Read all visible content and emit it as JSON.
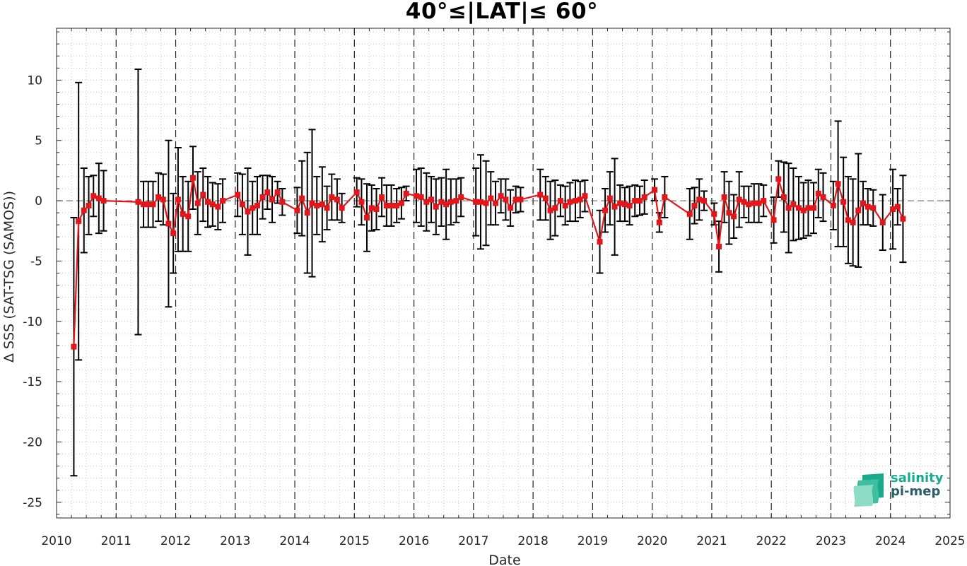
{
  "chart_data": {
    "type": "line",
    "title": "40°≤|LAT|≤ 60°",
    "xlabel": "Date",
    "ylabel": "Δ SSS (SAT-TSG (SAMOS))",
    "xlim": [
      2010,
      2025
    ],
    "ylim": [
      -26.3,
      14.3
    ],
    "xticks": [
      "2010",
      "2011",
      "2012",
      "2013",
      "2014",
      "2015",
      "2016",
      "2017",
      "2018",
      "2019",
      "2020",
      "2021",
      "2022",
      "2023",
      "2024",
      "2025"
    ],
    "yticks": [
      10,
      5,
      0,
      -5,
      -10,
      -15,
      -20,
      -25
    ],
    "grid": "minor dotted",
    "reference_line": 0,
    "year_separators": [
      2011,
      2012,
      2013,
      2014,
      2015,
      2016,
      2017,
      2018,
      2019,
      2020,
      2021,
      2022,
      2023,
      2024
    ],
    "colors": {
      "series": "#e3161b",
      "errorbar": "#000000",
      "axis": "#262626"
    },
    "series": [
      {
        "x": [
          2010.29,
          2010.37,
          2010.46,
          2010.54,
          2010.62,
          2010.71,
          2010.79,
          2011.37,
          2011.46,
          2011.54,
          2011.62,
          2011.71,
          2011.79,
          2011.88,
          2011.96,
          2012.04,
          2012.12,
          2012.21,
          2012.29,
          2012.37,
          2012.46,
          2012.54,
          2012.62,
          2012.71,
          2012.79,
          2013.04,
          2013.12,
          2013.21,
          2013.29,
          2013.37,
          2013.46,
          2013.54,
          2013.62,
          2013.71,
          2013.79,
          2014.04,
          2014.12,
          2014.21,
          2014.29,
          2014.37,
          2014.46,
          2014.54,
          2014.62,
          2014.71,
          2014.79,
          2015.04,
          2015.12,
          2015.21,
          2015.29,
          2015.37,
          2015.46,
          2015.54,
          2015.62,
          2015.71,
          2015.79,
          2015.87,
          2016.04,
          2016.12,
          2016.21,
          2016.29,
          2016.37,
          2016.46,
          2016.54,
          2016.62,
          2016.71,
          2016.79,
          2017.04,
          2017.12,
          2017.21,
          2017.29,
          2017.37,
          2017.46,
          2017.54,
          2017.62,
          2017.71,
          2017.79,
          2018.12,
          2018.21,
          2018.29,
          2018.37,
          2018.46,
          2018.54,
          2018.62,
          2018.71,
          2018.79,
          2018.87,
          2019.12,
          2019.21,
          2019.29,
          2019.37,
          2019.46,
          2019.54,
          2019.62,
          2019.71,
          2019.79,
          2019.87,
          2020.04,
          2020.12,
          2020.21,
          2020.63,
          2020.71,
          2020.79,
          2020.87,
          2021.04,
          2021.12,
          2021.21,
          2021.29,
          2021.37,
          2021.46,
          2021.54,
          2021.62,
          2021.71,
          2021.79,
          2021.87,
          2022.04,
          2022.12,
          2022.21,
          2022.29,
          2022.37,
          2022.46,
          2022.54,
          2022.62,
          2022.71,
          2022.79,
          2022.87,
          2023.04,
          2023.12,
          2023.21,
          2023.29,
          2023.37,
          2023.46,
          2023.54,
          2023.62,
          2023.71,
          2023.87,
          2024.04,
          2024.12,
          2024.21
        ],
        "y": [
          -12.1,
          -1.7,
          -0.8,
          -0.4,
          0.4,
          0.2,
          0.0,
          -0.1,
          -0.3,
          -0.3,
          -0.3,
          0.3,
          0.1,
          -1.9,
          -2.7,
          0.1,
          -1.1,
          -1.3,
          1.9,
          -0.2,
          0.5,
          -0.1,
          -0.3,
          -0.5,
          0.0,
          0.5,
          -0.3,
          -0.9,
          -0.6,
          -0.4,
          0.3,
          0.7,
          0.1,
          0.7,
          -0.1,
          -0.8,
          0.2,
          -1.0,
          -0.2,
          -0.4,
          -0.3,
          -0.6,
          0.3,
          0.1,
          -0.6,
          0.7,
          -0.1,
          -1.4,
          -0.6,
          -0.7,
          0.3,
          -0.4,
          -0.4,
          -0.4,
          -0.2,
          0.6,
          0.4,
          0.3,
          -0.1,
          0.1,
          -0.5,
          -0.1,
          -0.3,
          -0.1,
          0.0,
          0.3,
          -0.1,
          -0.1,
          -0.2,
          0.2,
          -0.2,
          0.4,
          0.1,
          -0.6,
          0.1,
          0.1,
          0.5,
          0.2,
          -0.8,
          -0.6,
          0.0,
          -0.4,
          -0.1,
          0.0,
          0.1,
          0.4,
          -3.4,
          -0.8,
          0.2,
          -0.5,
          -0.2,
          -0.3,
          -0.4,
          0.0,
          0.0,
          0.3,
          0.9,
          -1.8,
          0.3,
          -1.1,
          -0.4,
          0.1,
          0.0,
          -1.1,
          -3.8,
          0.3,
          -1.0,
          -1.3,
          0.1,
          -0.1,
          -0.3,
          -0.2,
          -0.2,
          0.0,
          -1.6,
          1.8,
          0.3,
          -0.6,
          -0.3,
          -0.6,
          -0.8,
          -0.6,
          -0.6,
          0.6,
          0.3,
          -0.4,
          1.4,
          -0.1,
          -1.6,
          -1.8,
          -0.8,
          -0.2,
          -0.5,
          -0.6,
          -1.8,
          -0.7,
          -0.5,
          -1.5
        ],
        "err": [
          10.7,
          11.5,
          3.5,
          2.4,
          1.7,
          2.9,
          2.5,
          11.0,
          1.9,
          1.9,
          1.9,
          2.0,
          2.1,
          6.9,
          3.3,
          4.3,
          3.1,
          2.9,
          2.6,
          2.6,
          2.2,
          2.1,
          1.8,
          1.9,
          1.8,
          1.8,
          2.5,
          3.6,
          2.2,
          2.4,
          1.8,
          1.4,
          1.9,
          0.9,
          1.1,
          1.9,
          3.1,
          5.0,
          6.1,
          2.4,
          3.1,
          1.8,
          1.9,
          1.7,
          1.2,
          1.2,
          1.9,
          2.8,
          1.9,
          1.7,
          1.6,
          1.7,
          1.7,
          1.4,
          1.3,
          0.6,
          2.2,
          2.4,
          2.4,
          1.9,
          2.3,
          2.0,
          2.9,
          1.9,
          1.8,
          1.6,
          2.8,
          3.9,
          3.5,
          2.2,
          1.8,
          1.4,
          1.7,
          1.5,
          1.1,
          1.0,
          2.1,
          1.8,
          2.4,
          2.3,
          1.3,
          1.6,
          1.6,
          1.7,
          1.5,
          1.3,
          2.6,
          1.8,
          2.2,
          4.0,
          1.5,
          1.4,
          1.6,
          1.3,
          1.2,
          1.4,
          0.9,
          0.8,
          1.7,
          2.1,
          1.5,
          1.7,
          0.8,
          0.9,
          2.1,
          2.1,
          2.6,
          1.8,
          2.3,
          1.3,
          1.5,
          1.6,
          1.6,
          1.3,
          1.9,
          1.5,
          2.9,
          3.7,
          3.0,
          2.6,
          2.3,
          2.3,
          2.1,
          2.0,
          2.0,
          2.0,
          5.2,
          3.7,
          3.6,
          3.6,
          4.7,
          1.8,
          1.5,
          1.5,
          2.3,
          3.3,
          1.5,
          3.6
        ]
      }
    ]
  },
  "logo": {
    "line1": "salinity",
    "line2": "pi-mep"
  }
}
